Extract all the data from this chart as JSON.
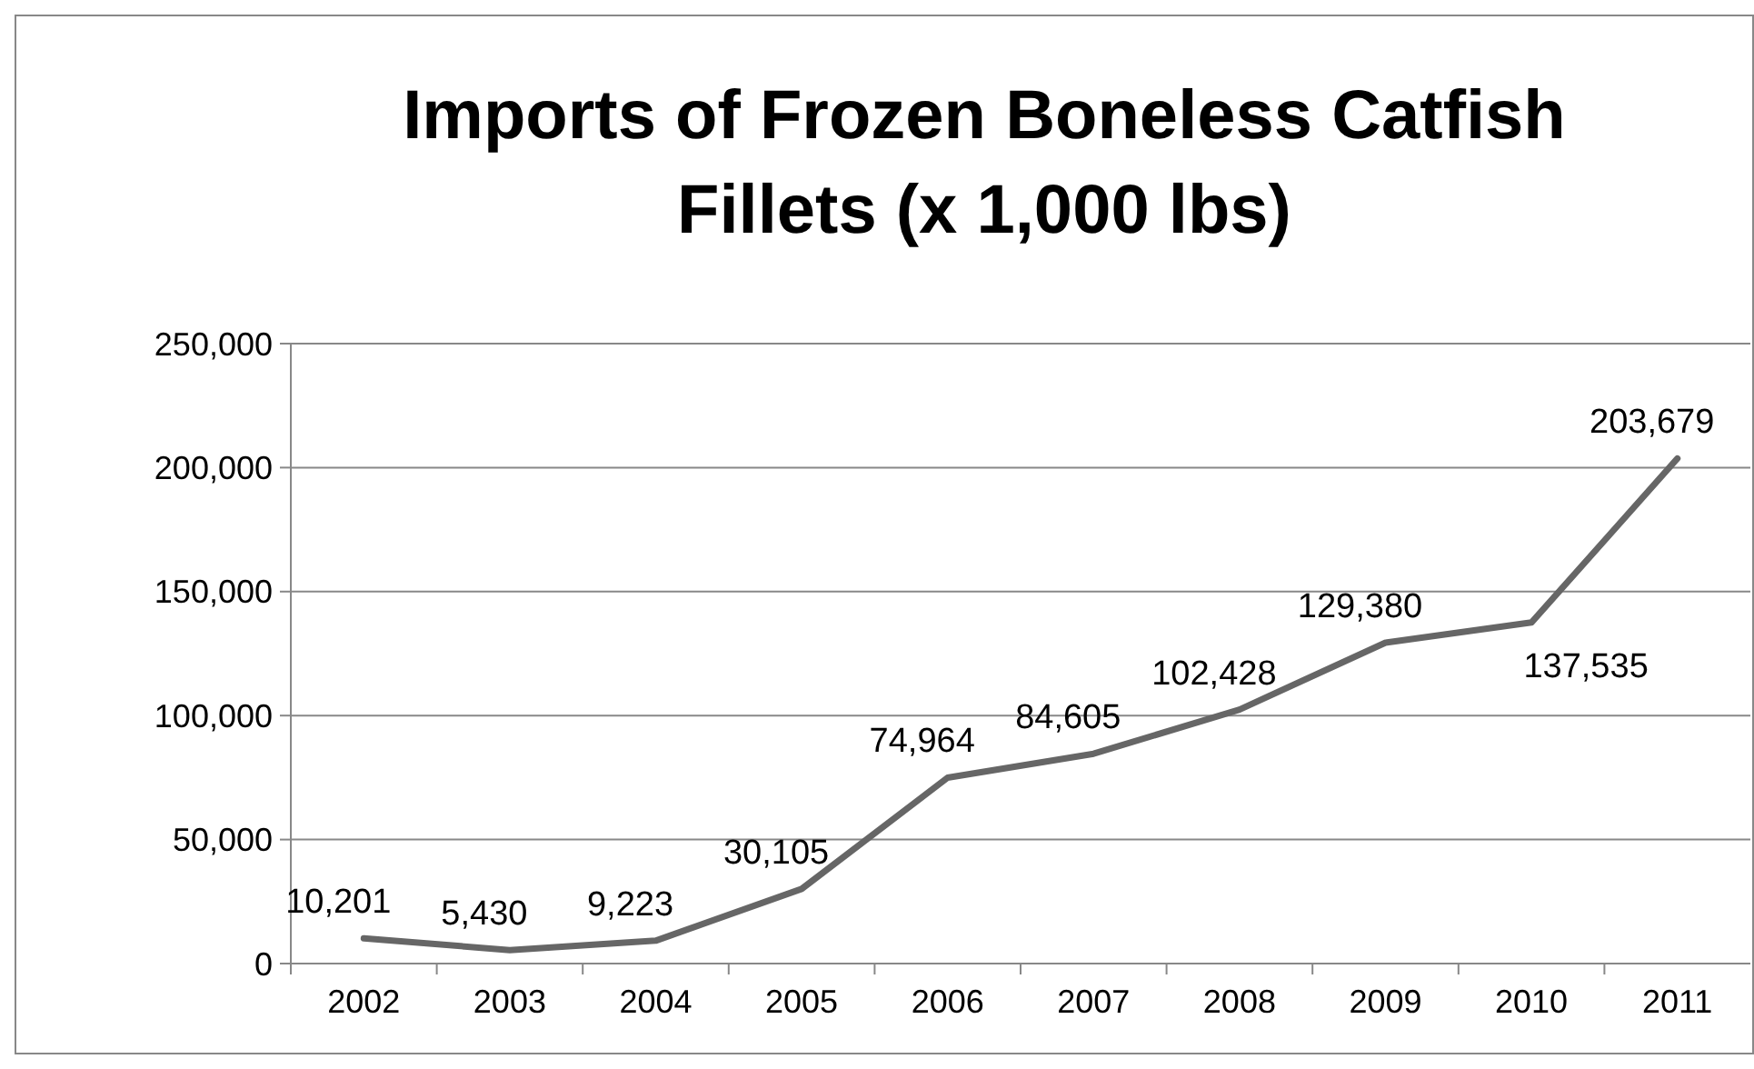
{
  "chart_data": {
    "type": "line",
    "title": "Imports of Frozen Boneless Catfish Fillets (x 1,000 lbs)",
    "categories": [
      "2002",
      "2003",
      "2004",
      "2005",
      "2006",
      "2007",
      "2008",
      "2009",
      "2010",
      "2011"
    ],
    "series": [
      {
        "color": "#666666",
        "values": [
          10201,
          5430,
          9223,
          30105,
          74964,
          84605,
          102428,
          129380,
          137535,
          203679
        ]
      }
    ],
    "value_labels": [
      "10,201",
      "5,430",
      "9,223",
      "30,105",
      "74,964",
      "84,605",
      "102,428",
      "129,380",
      "137,535",
      "203,679"
    ],
    "ylim": [
      0,
      250000
    ],
    "yticks": [
      {
        "value": 0,
        "label": "0"
      },
      {
        "value": 50000,
        "label": "50,000"
      },
      {
        "value": 100000,
        "label": "100,000"
      },
      {
        "value": 150000,
        "label": "150,000"
      },
      {
        "value": 200000,
        "label": "200,000"
      },
      {
        "value": 250000,
        "label": "250,000"
      }
    ],
    "grid": "y",
    "marker": "none",
    "line_style": "solid"
  }
}
